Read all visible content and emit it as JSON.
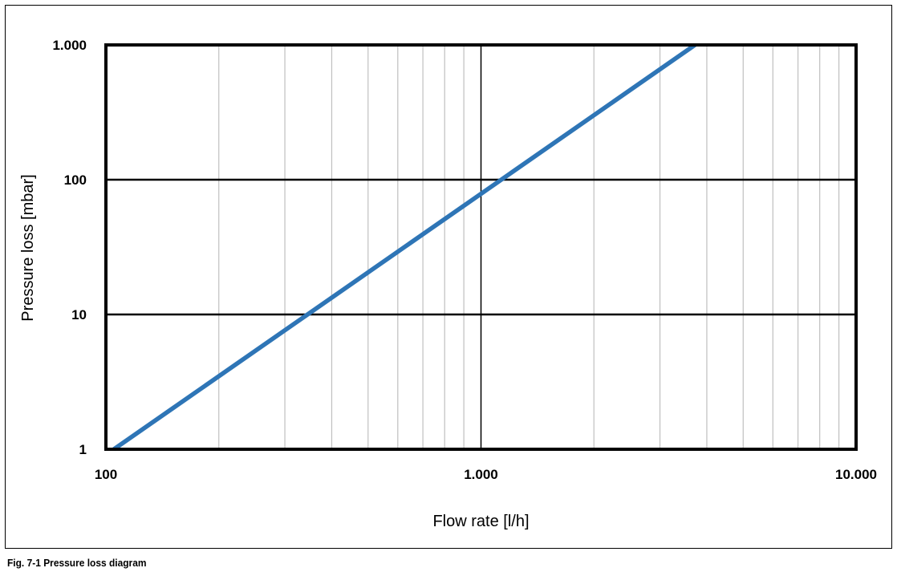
{
  "caption": "Fig. 7-1 Pressure loss diagram",
  "chart_data": {
    "type": "line",
    "xlabel": "Flow rate [l/h]",
    "ylabel": "Pressure loss [mbar]",
    "x_scale": "log",
    "y_scale": "log",
    "xlim": [
      100,
      10000
    ],
    "ylim": [
      1,
      1000
    ],
    "x_ticks": [
      {
        "value": 100,
        "label": "100"
      },
      {
        "value": 1000,
        "label": "1.000"
      },
      {
        "value": 10000,
        "label": "10.000"
      }
    ],
    "y_ticks": [
      {
        "value": 1,
        "label": "1"
      },
      {
        "value": 10,
        "label": "10"
      },
      {
        "value": 100,
        "label": "100"
      },
      {
        "value": 1000,
        "label": "1.000"
      }
    ],
    "grid": true,
    "legend": "none",
    "series": [
      {
        "color": "#2E75B6",
        "x": [
          105,
          3720
        ],
        "y": [
          1,
          1000
        ]
      }
    ]
  },
  "colors": {
    "line": "#2E75B6",
    "major_grid": "#000000",
    "minor_grid": "#BFBFBF",
    "plot_border": "#000000"
  }
}
